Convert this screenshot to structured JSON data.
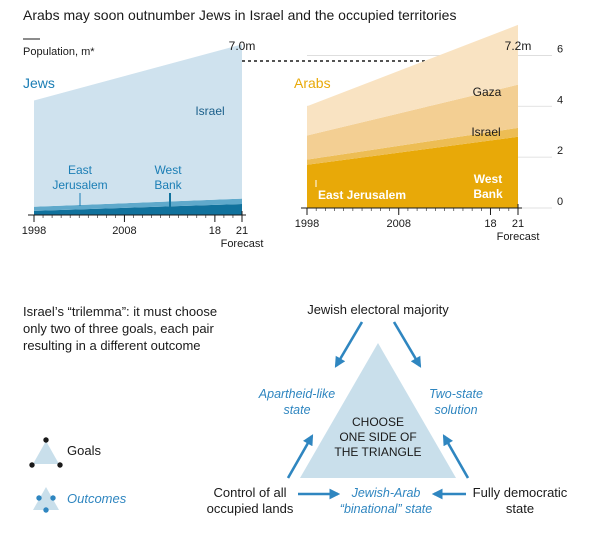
{
  "title": "Arabs may soon outnumber Jews in Israel and the occupied territories",
  "unit_label": "Population, m*",
  "colors": {
    "jews_israel": "#cfe2ee",
    "jews_east_jerusalem": "#5fa9cb",
    "jews_west_bank": "#11729d",
    "arabs_gaza": "#f9e3c2",
    "arabs_israel": "#f3cf93",
    "arabs_east_jerusalem": "#edbd54",
    "arabs_west_bank": "#e8a908",
    "jews_accent": "#1b7eb5",
    "arabs_accent": "#e8a908",
    "triangle": "#c9dfeb",
    "arrow": "#2f86c0"
  },
  "chart_data": [
    {
      "type": "area",
      "stacked": true,
      "heading": "Jews",
      "x": [
        1998,
        2021
      ],
      "x_ticks": [
        "1998",
        "2008",
        "18",
        "21"
      ],
      "forecast_label": "Forecast",
      "ylim": [
        0,
        8
      ],
      "end_label": "7.0m",
      "series": [
        {
          "name": "West Bank",
          "values": [
            0.17,
            0.45
          ]
        },
        {
          "name": "East Jerusalem",
          "values": [
            0.17,
            0.22
          ]
        },
        {
          "name": "Israel",
          "values": [
            4.36,
            6.33
          ]
        }
      ],
      "series_labels": {
        "east_jerusalem": [
          "East",
          "Jerusalem"
        ],
        "west_bank": [
          "West",
          "Bank"
        ],
        "israel": "Israel"
      }
    },
    {
      "type": "area",
      "stacked": true,
      "heading": "Arabs",
      "x": [
        1998,
        2021
      ],
      "x_ticks": [
        "1998",
        "2008",
        "18",
        "21"
      ],
      "forecast_label": "Forecast",
      "ylim": [
        0,
        7
      ],
      "y_ticks": [
        "0",
        "2",
        "4",
        "6"
      ],
      "end_label": "7.2m",
      "series": [
        {
          "name": "West Bank",
          "values": [
            1.7,
            2.8
          ]
        },
        {
          "name": "East Jerusalem",
          "values": [
            0.2,
            0.35
          ]
        },
        {
          "name": "Israel",
          "values": [
            0.95,
            1.7
          ]
        },
        {
          "name": "Gaza",
          "values": [
            1.15,
            2.35
          ]
        }
      ],
      "series_labels": {
        "west_bank": [
          "West",
          "Bank"
        ],
        "east_jerusalem": "East Jerusalem",
        "israel": "Israel",
        "gaza": "Gaza"
      }
    }
  ],
  "trilemma": {
    "intro": [
      "Israel’s “trilemma”: it must choose",
      "only two of three goals, each pair",
      "resulting in a different outcome"
    ],
    "center": [
      "CHOOSE",
      "ONE SIDE OF",
      "THE TRIANGLE"
    ],
    "goals": {
      "top": "Jewish electoral majority",
      "left": [
        "Control of all",
        "occupied lands"
      ],
      "right": [
        "Fully democratic",
        "state"
      ]
    },
    "outcomes": {
      "left": [
        "Apartheid-like",
        "state"
      ],
      "right": [
        "Two-state",
        "solution"
      ],
      "bottom": [
        "Jewish-Arab",
        "“binational” state"
      ]
    },
    "legend": {
      "goals": "Goals",
      "outcomes": "Outcomes"
    }
  }
}
